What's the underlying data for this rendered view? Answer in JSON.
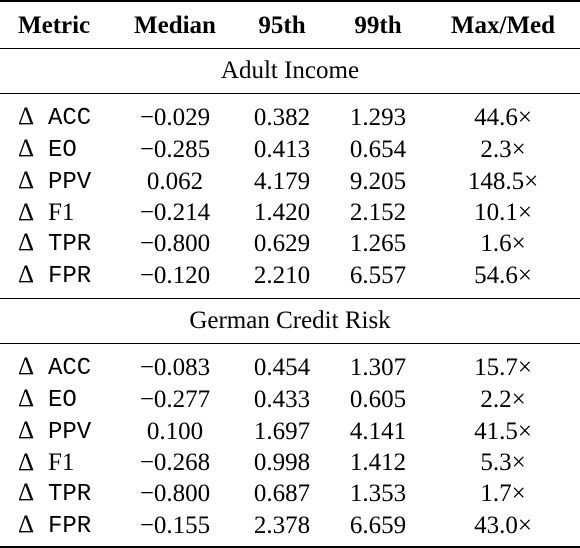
{
  "headers": [
    "Metric",
    "Median",
    "95th",
    "99th",
    "Max/Med"
  ],
  "sections": [
    {
      "title": "Adult Income",
      "rows": [
        {
          "symbol": "Δ",
          "metric": "ACC",
          "mono": true,
          "median": "−0.029",
          "p95": "0.382",
          "p99": "1.293",
          "maxmed": "44.6×"
        },
        {
          "symbol": "Δ",
          "metric": "EO",
          "mono": true,
          "median": "−0.285",
          "p95": "0.413",
          "p99": "0.654",
          "maxmed": "2.3×"
        },
        {
          "symbol": "Δ",
          "metric": "PPV",
          "mono": true,
          "median": "0.062",
          "p95": "4.179",
          "p99": "9.205",
          "maxmed": "148.5×"
        },
        {
          "symbol": "Δ",
          "metric": "F1",
          "mono": false,
          "median": "−0.214",
          "p95": "1.420",
          "p99": "2.152",
          "maxmed": "10.1×"
        },
        {
          "symbol": "Δ",
          "metric": "TPR",
          "mono": true,
          "median": "−0.800",
          "p95": "0.629",
          "p99": "1.265",
          "maxmed": "1.6×"
        },
        {
          "symbol": "Δ",
          "metric": "FPR",
          "mono": true,
          "median": "−0.120",
          "p95": "2.210",
          "p99": "6.557",
          "maxmed": "54.6×"
        }
      ]
    },
    {
      "title": "German Credit Risk",
      "rows": [
        {
          "symbol": "Δ",
          "metric": "ACC",
          "mono": true,
          "median": "−0.083",
          "p95": "0.454",
          "p99": "1.307",
          "maxmed": "15.7×"
        },
        {
          "symbol": "Δ",
          "metric": "EO",
          "mono": true,
          "median": "−0.277",
          "p95": "0.433",
          "p99": "0.605",
          "maxmed": "2.2×"
        },
        {
          "symbol": "Δ",
          "metric": "PPV",
          "mono": true,
          "median": "0.100",
          "p95": "1.697",
          "p99": "4.141",
          "maxmed": "41.5×"
        },
        {
          "symbol": "Δ",
          "metric": "F1",
          "mono": false,
          "median": "−0.268",
          "p95": "0.998",
          "p99": "1.412",
          "maxmed": "5.3×"
        },
        {
          "symbol": "Δ",
          "metric": "TPR",
          "mono": true,
          "median": "−0.800",
          "p95": "0.687",
          "p99": "1.353",
          "maxmed": "1.7×"
        },
        {
          "symbol": "Δ",
          "metric": "FPR",
          "mono": true,
          "median": "−0.155",
          "p95": "2.378",
          "p99": "6.659",
          "maxmed": "43.0×"
        }
      ]
    }
  ]
}
